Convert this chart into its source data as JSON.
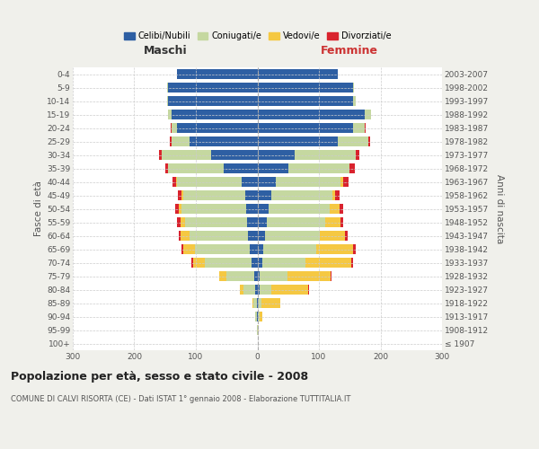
{
  "age_groups": [
    "100+",
    "95-99",
    "90-94",
    "85-89",
    "80-84",
    "75-79",
    "70-74",
    "65-69",
    "60-64",
    "55-59",
    "50-54",
    "45-49",
    "40-44",
    "35-39",
    "30-34",
    "25-29",
    "20-24",
    "15-19",
    "10-14",
    "5-9",
    "0-4"
  ],
  "birth_years": [
    "≤ 1907",
    "1908-1912",
    "1913-1917",
    "1918-1922",
    "1923-1927",
    "1928-1932",
    "1933-1937",
    "1938-1942",
    "1943-1947",
    "1948-1952",
    "1953-1957",
    "1958-1962",
    "1963-1967",
    "1968-1972",
    "1973-1977",
    "1978-1982",
    "1983-1987",
    "1988-1992",
    "1993-1997",
    "1998-2002",
    "2003-2007"
  ],
  "maschi": {
    "celibi": [
      0,
      0,
      1,
      1,
      3,
      5,
      10,
      12,
      15,
      17,
      18,
      20,
      25,
      55,
      75,
      110,
      130,
      140,
      145,
      145,
      130
    ],
    "coniugati": [
      0,
      1,
      2,
      5,
      20,
      45,
      75,
      90,
      95,
      100,
      105,
      100,
      105,
      90,
      80,
      30,
      10,
      5,
      2,
      1,
      0
    ],
    "vedovi": [
      0,
      0,
      0,
      2,
      5,
      12,
      20,
      18,
      15,
      8,
      5,
      3,
      2,
      0,
      0,
      0,
      0,
      0,
      0,
      0,
      0
    ],
    "divorziati": [
      0,
      0,
      0,
      0,
      0,
      0,
      2,
      3,
      3,
      5,
      6,
      6,
      6,
      5,
      5,
      3,
      1,
      0,
      0,
      0,
      0
    ]
  },
  "femmine": {
    "nubili": [
      0,
      0,
      1,
      2,
      3,
      4,
      8,
      10,
      12,
      15,
      18,
      22,
      30,
      50,
      60,
      130,
      155,
      175,
      155,
      155,
      130
    ],
    "coniugate": [
      0,
      1,
      2,
      5,
      20,
      45,
      70,
      85,
      90,
      95,
      100,
      100,
      105,
      100,
      100,
      50,
      20,
      10,
      5,
      2,
      0
    ],
    "vedove": [
      0,
      1,
      5,
      30,
      60,
      70,
      75,
      60,
      40,
      25,
      15,
      5,
      5,
      0,
      0,
      0,
      0,
      0,
      0,
      0,
      0
    ],
    "divorziate": [
      0,
      0,
      0,
      0,
      1,
      2,
      3,
      5,
      4,
      5,
      6,
      6,
      8,
      8,
      5,
      3,
      1,
      0,
      0,
      0,
      0
    ]
  },
  "colors": {
    "celibi": "#2e5fa3",
    "coniugati": "#c5d8a0",
    "vedovi": "#f5c842",
    "divorziati": "#d9232d"
  },
  "xlim": 300,
  "title": "Popolazione per età, sesso e stato civile - 2008",
  "subtitle": "COMUNE DI CALVI RISORTA (CE) - Dati ISTAT 1° gennaio 2008 - Elaborazione TUTTITALIA.IT",
  "ylabel_left": "Fasce di età",
  "ylabel_right": "Anni di nascita",
  "xlabel_left": "Maschi",
  "xlabel_right": "Femmine",
  "bg_color": "#f0f0eb",
  "plot_bg": "#ffffff"
}
